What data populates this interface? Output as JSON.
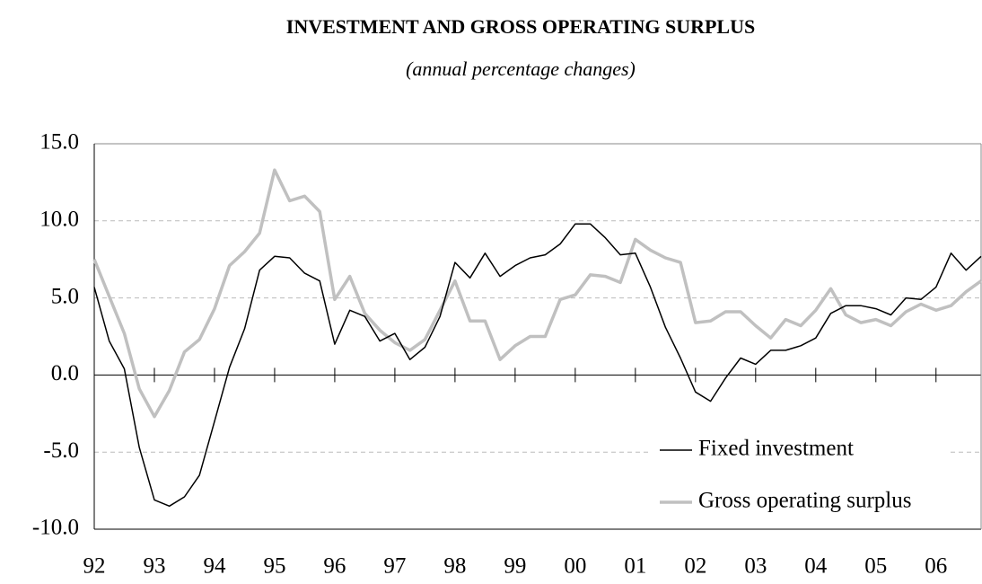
{
  "chart_data": {
    "type": "line",
    "title": "INVESTMENT AND GROSS OPERATING SURPLUS",
    "subtitle": "(annual percentage changes)",
    "categories": [
      "92",
      null,
      null,
      null,
      "93",
      null,
      null,
      null,
      "94",
      null,
      null,
      null,
      "95",
      null,
      null,
      null,
      "96",
      null,
      null,
      null,
      "97",
      null,
      null,
      null,
      "98",
      null,
      null,
      null,
      "99",
      null,
      null,
      null,
      "00",
      null,
      null,
      null,
      "01",
      null,
      null,
      null,
      "02",
      null,
      null,
      null,
      "03",
      null,
      null,
      null,
      "04",
      null,
      null,
      null,
      "05",
      null,
      null,
      null,
      "06",
      null,
      null,
      null
    ],
    "series": [
      {
        "name": "Fixed investment",
        "color": "#000000",
        "width": 1.5,
        "values": [
          5.7,
          2.2,
          0.4,
          -4.7,
          -8.1,
          -8.5,
          -7.9,
          -6.5,
          -3.0,
          0.5,
          3.0,
          6.8,
          7.7,
          7.6,
          6.6,
          6.1,
          2.0,
          4.2,
          3.8,
          2.2,
          2.7,
          1.0,
          1.8,
          3.8,
          7.3,
          6.3,
          7.9,
          6.4,
          7.1,
          7.6,
          7.8,
          8.5,
          9.8,
          9.8,
          8.9,
          7.8,
          7.9,
          5.7,
          3.1,
          1.1,
          -1.1,
          -1.7,
          -0.2,
          1.1,
          0.7,
          1.6,
          1.6,
          1.9,
          2.4,
          4.0,
          4.5,
          4.5,
          4.3,
          3.9,
          5.0,
          4.9,
          5.7,
          7.9,
          6.8,
          7.7
        ]
      },
      {
        "name": "Gross operating surplus",
        "color": "#c0c0c0",
        "width": 3.5,
        "values": [
          7.5,
          5.1,
          2.7,
          -0.9,
          -2.7,
          -1.0,
          1.5,
          2.3,
          4.3,
          7.1,
          8.0,
          9.2,
          13.3,
          11.3,
          11.6,
          10.6,
          4.9,
          6.4,
          4.0,
          2.9,
          2.1,
          1.6,
          2.3,
          4.2,
          6.1,
          3.5,
          3.5,
          1.0,
          1.9,
          2.5,
          2.5,
          4.9,
          5.2,
          6.5,
          6.4,
          6.0,
          8.8,
          8.1,
          7.6,
          7.3,
          3.4,
          3.5,
          4.1,
          4.1,
          3.2,
          2.4,
          3.6,
          3.2,
          4.2,
          5.6,
          3.9,
          3.4,
          3.6,
          3.2,
          4.1,
          4.6,
          4.2,
          4.5,
          5.4,
          6.1
        ]
      }
    ],
    "ylim": [
      -10,
      15
    ],
    "yticks": [
      {
        "value": -10,
        "label": "-10.0"
      },
      {
        "value": -5,
        "label": "-5.0"
      },
      {
        "value": 0,
        "label": "0.0"
      },
      {
        "value": 5,
        "label": "5.0"
      },
      {
        "value": 10,
        "label": "10.0"
      },
      {
        "value": 15,
        "label": "15.0"
      }
    ],
    "grid": true,
    "legend": "bottom-center"
  }
}
